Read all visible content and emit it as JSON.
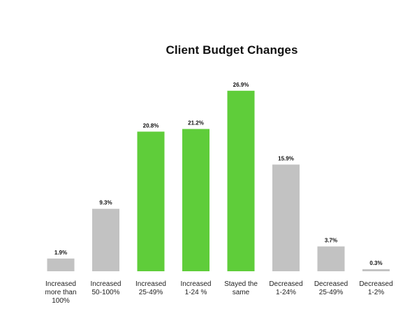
{
  "chart_data": {
    "type": "bar",
    "title": "Client Budget Changes",
    "xlabel": "",
    "ylabel": "",
    "ylim": [
      0,
      30
    ],
    "grid": false,
    "legend": "none",
    "categories": [
      "Increased more than 100%",
      "Increased 50-100%",
      "Increased 25-49%",
      "Increased 1-24 %",
      "Stayed the same",
      "Decreased 1-24%",
      "Decreased 25-49%",
      "Decreased 1-2%"
    ],
    "category_lines": [
      [
        "Increased",
        "more than",
        "100%"
      ],
      [
        "Increased",
        "50-100%"
      ],
      [
        "Increased",
        "25-49%"
      ],
      [
        "Increased",
        "1-24 %"
      ],
      [
        "Stayed the",
        "same"
      ],
      [
        "Decreased",
        "1-24%"
      ],
      [
        "Decreased",
        "25-49%"
      ],
      [
        "Decreased",
        "1-2%"
      ]
    ],
    "values": [
      1.9,
      9.3,
      20.8,
      21.2,
      26.9,
      15.9,
      3.7,
      0.3
    ],
    "value_labels": [
      "1.9%",
      "9.3%",
      "20.8%",
      "21.2%",
      "26.9%",
      "15.9%",
      "3.7%",
      "0.3%"
    ],
    "highlighted": [
      false,
      false,
      true,
      true,
      true,
      false,
      false,
      false
    ],
    "colors": {
      "highlight": "#5fcd3a",
      "default": "#c2c2c2"
    }
  }
}
